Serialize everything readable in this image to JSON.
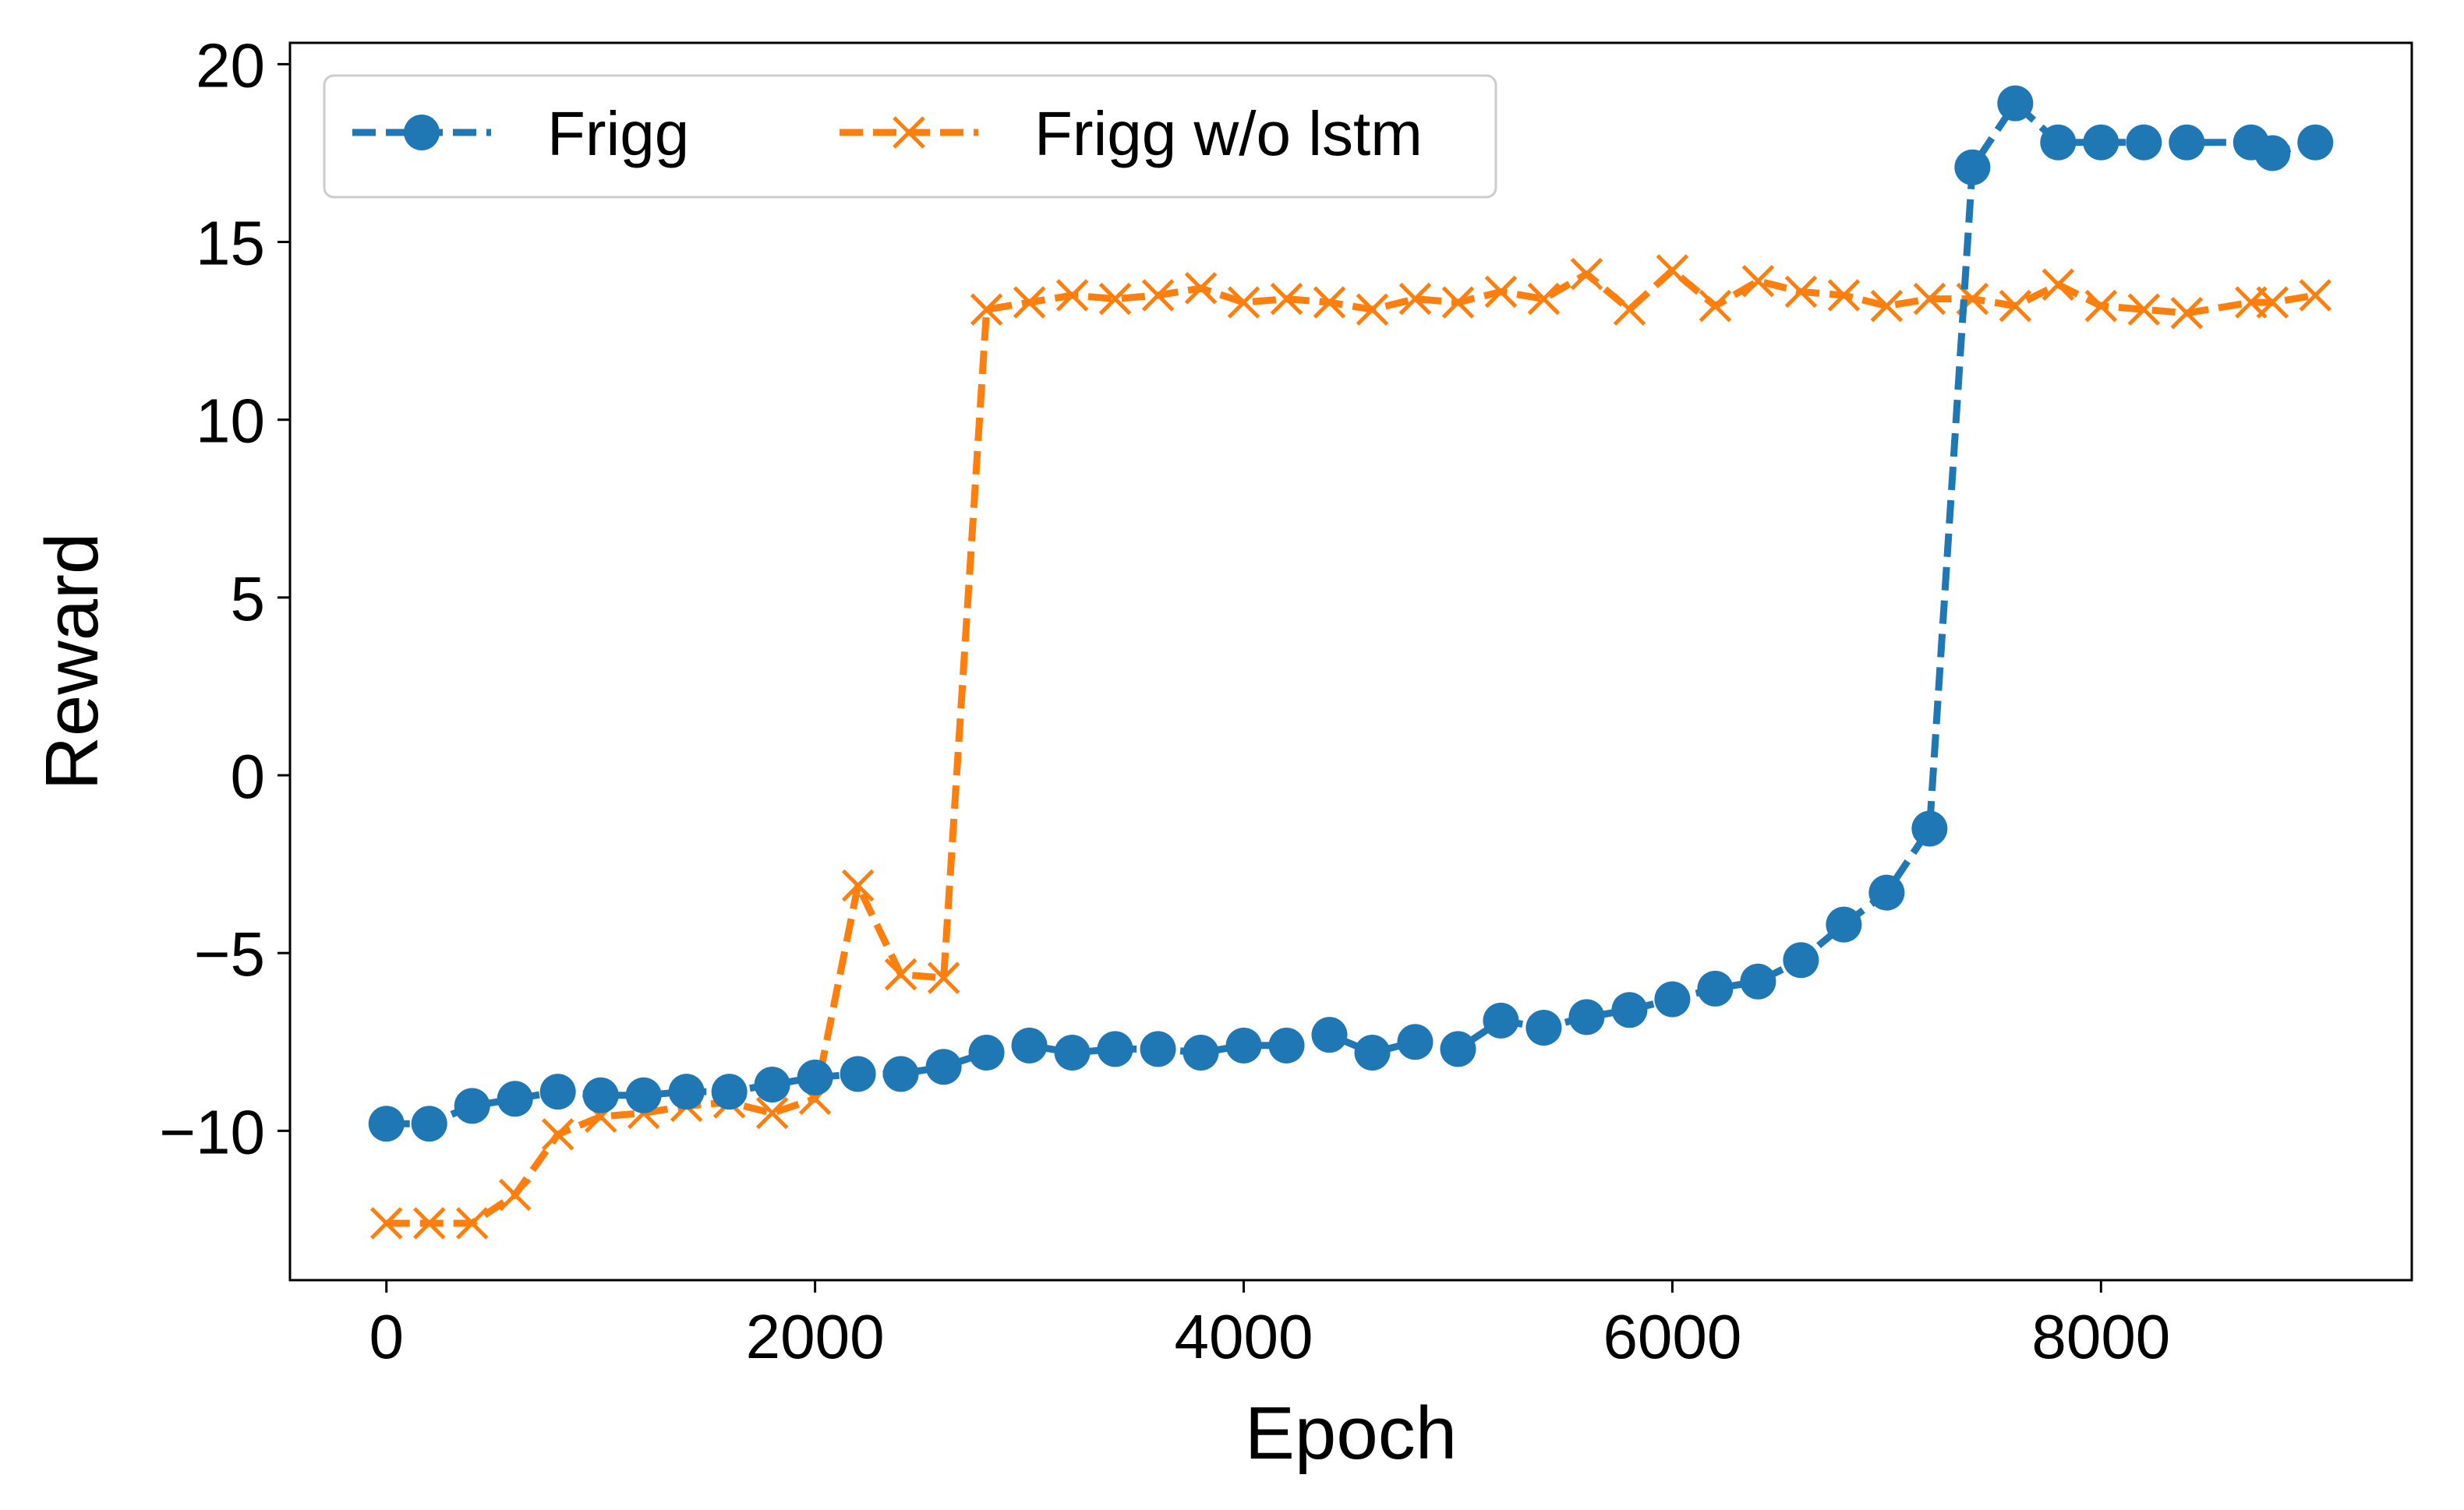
{
  "chart_data": {
    "type": "line",
    "title": "",
    "xlabel": "Epoch",
    "ylabel": "Reward",
    "xlim": [
      -450,
      9450
    ],
    "ylim": [
      -14.2,
      20.6
    ],
    "xticks": [
      0,
      2000,
      4000,
      6000,
      8000
    ],
    "xtick_labels": [
      "0",
      "2000",
      "4000",
      "6000",
      "8000"
    ],
    "yticks": [
      -10,
      -5,
      0,
      5,
      10,
      15,
      20
    ],
    "ytick_labels": [
      "−10",
      "−5",
      "0",
      "5",
      "10",
      "15",
      "20"
    ],
    "grid": false,
    "legend": "top-left",
    "series": [
      {
        "name": "Frigg",
        "color": "#1f77b4",
        "marker": "circle",
        "linestyle": "dashed",
        "x": [
          0,
          200,
          400,
          600,
          800,
          1000,
          1200,
          1400,
          1600,
          1800,
          2000,
          2200,
          2400,
          2600,
          2800,
          3000,
          3200,
          3400,
          3600,
          3800,
          4000,
          4200,
          4400,
          4600,
          4800,
          5000,
          5200,
          5400,
          5600,
          5800,
          6000,
          6200,
          6400,
          6600,
          6800,
          7000,
          7200,
          7400,
          7600,
          7800,
          8000,
          8200,
          8400,
          8700,
          8800,
          9000
        ],
        "y": [
          -9.8,
          -9.8,
          -9.3,
          -9.1,
          -8.9,
          -9.0,
          -9.0,
          -8.9,
          -8.9,
          -8.7,
          -8.5,
          -8.4,
          -8.4,
          -8.2,
          -7.8,
          -7.6,
          -7.8,
          -7.7,
          -7.7,
          -7.8,
          -7.6,
          -7.6,
          -7.3,
          -7.8,
          -7.5,
          -7.7,
          -6.9,
          -7.1,
          -6.8,
          -6.6,
          -6.3,
          -6.0,
          -5.8,
          -5.2,
          -4.2,
          -3.3,
          -1.5,
          17.1,
          18.9,
          17.8,
          17.8,
          17.8,
          17.8,
          17.8,
          17.5,
          17.8
        ]
      },
      {
        "name": "Frigg w/o lstm",
        "color": "#ff7f0e",
        "marker": "x",
        "linestyle": "dashed",
        "x": [
          0,
          200,
          400,
          600,
          800,
          1000,
          1200,
          1400,
          1600,
          1800,
          2000,
          2200,
          2400,
          2600,
          2800,
          3000,
          3200,
          3400,
          3600,
          3800,
          4000,
          4200,
          4400,
          4600,
          4800,
          5000,
          5200,
          5400,
          5600,
          5800,
          6000,
          6200,
          6400,
          6600,
          6800,
          7000,
          7200,
          7400,
          7600,
          7800,
          8000,
          8200,
          8400,
          8700,
          8800,
          9000
        ],
        "y": [
          -12.6,
          -12.6,
          -12.6,
          -11.8,
          -10.1,
          -9.6,
          -9.5,
          -9.3,
          -9.2,
          -9.5,
          -9.1,
          -3.1,
          -5.6,
          -5.7,
          13.1,
          13.3,
          13.5,
          13.4,
          13.5,
          13.7,
          13.3,
          13.4,
          13.3,
          13.1,
          13.4,
          13.3,
          13.6,
          13.4,
          14.1,
          13.1,
          14.2,
          13.2,
          13.9,
          13.6,
          13.5,
          13.2,
          13.4,
          13.4,
          13.2,
          13.8,
          13.2,
          13.1,
          13.0,
          13.3,
          13.3,
          13.5
        ]
      }
    ]
  }
}
